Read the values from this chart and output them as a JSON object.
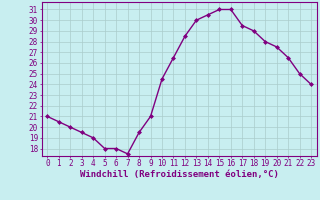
{
  "x": [
    0,
    1,
    2,
    3,
    4,
    5,
    6,
    7,
    8,
    9,
    10,
    11,
    12,
    13,
    14,
    15,
    16,
    17,
    18,
    19,
    20,
    21,
    22,
    23
  ],
  "y": [
    21,
    20.5,
    20,
    19.5,
    19,
    18,
    18,
    17.5,
    19.5,
    21,
    24.5,
    26.5,
    28.5,
    30,
    30.5,
    31,
    31,
    29.5,
    29,
    28,
    27.5,
    26.5,
    25,
    24
  ],
  "line_color": "#800080",
  "marker": "D",
  "marker_size": 2.0,
  "bg_color": "#c8eef0",
  "grid_color": "#aacccc",
  "xlabel": "Windchill (Refroidissement éolien,°C)",
  "xlabel_fontsize": 6.5,
  "ylim": [
    17.3,
    31.7
  ],
  "xlim": [
    -0.5,
    23.5
  ],
  "yticks": [
    18,
    19,
    20,
    21,
    22,
    23,
    24,
    25,
    26,
    27,
    28,
    29,
    30,
    31
  ],
  "xticks": [
    0,
    1,
    2,
    3,
    4,
    5,
    6,
    7,
    8,
    9,
    10,
    11,
    12,
    13,
    14,
    15,
    16,
    17,
    18,
    19,
    20,
    21,
    22,
    23
  ],
  "tick_fontsize": 5.5,
  "line_width": 1.0
}
